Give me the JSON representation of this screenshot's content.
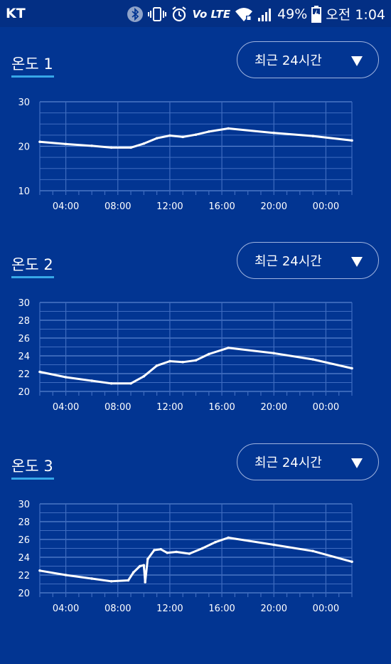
{
  "statusbar": {
    "carrier": "KT",
    "volte": "Vo LTE",
    "battery": "49%",
    "time": "오전 1:04",
    "icons": [
      "bluetooth-icon",
      "vibrate-icon",
      "alarm-icon",
      "volte-icon",
      "wifi-icon",
      "signal-icon",
      "battery-icon"
    ]
  },
  "colors": {
    "background": "#023592",
    "grid": "#3f6cc0",
    "line": "#ffffff",
    "accent": "#37a7e8"
  },
  "range_label": "최근 24시간",
  "chart_data": [
    {
      "type": "line",
      "title": "온도 1",
      "ylim": [
        10,
        30
      ],
      "yticks": [
        "30",
        "20",
        "10"
      ],
      "xticks": [
        "04:00",
        "08:00",
        "12:00",
        "16:00",
        "20:00",
        "00:00"
      ],
      "xlim": [
        1,
        25
      ],
      "x": [
        1,
        3,
        5,
        6.5,
        8,
        9,
        10,
        11,
        12,
        13,
        14,
        15.5,
        19,
        22,
        25
      ],
      "y": [
        21,
        20.5,
        20.1,
        19.7,
        19.7,
        20.6,
        21.8,
        22.4,
        22.1,
        22.6,
        23.3,
        24,
        23,
        22.3,
        21.3
      ]
    },
    {
      "type": "line",
      "title": "온도 2",
      "ylim": [
        20,
        30
      ],
      "yticks": [
        "30",
        "28",
        "26",
        "24",
        "22",
        "20"
      ],
      "xticks": [
        "04:00",
        "08:00",
        "12:00",
        "16:00",
        "20:00",
        "00:00"
      ],
      "xlim": [
        1,
        25
      ],
      "x": [
        1,
        3,
        5,
        6.5,
        8,
        9,
        10,
        11,
        12,
        13,
        14,
        15.5,
        19,
        22,
        25
      ],
      "y": [
        22.2,
        21.6,
        21.2,
        20.9,
        20.9,
        21.7,
        22.9,
        23.4,
        23.3,
        23.5,
        24.2,
        24.9,
        24.3,
        23.6,
        22.6
      ]
    },
    {
      "type": "line",
      "title": "온도 3",
      "ylim": [
        20,
        30
      ],
      "yticks": [
        "30",
        "28",
        "26",
        "24",
        "22",
        "20"
      ],
      "xticks": [
        "04:00",
        "08:00",
        "12:00",
        "16:00",
        "20:00",
        "00:00"
      ],
      "xlim": [
        1,
        25
      ],
      "x": [
        1,
        3,
        5,
        6.5,
        7.8,
        8.2,
        8.7,
        9.0,
        9.1,
        9.3,
        9.8,
        10.3,
        10.8,
        11.5,
        12.5,
        13.5,
        14.5,
        15.5,
        19,
        22,
        25
      ],
      "y": [
        22.5,
        22.0,
        21.6,
        21.3,
        21.4,
        22.3,
        23.0,
        23.1,
        21.2,
        23.8,
        24.8,
        24.9,
        24.5,
        24.6,
        24.4,
        25.0,
        25.7,
        26.2,
        25.4,
        24.7,
        23.5
      ]
    }
  ]
}
